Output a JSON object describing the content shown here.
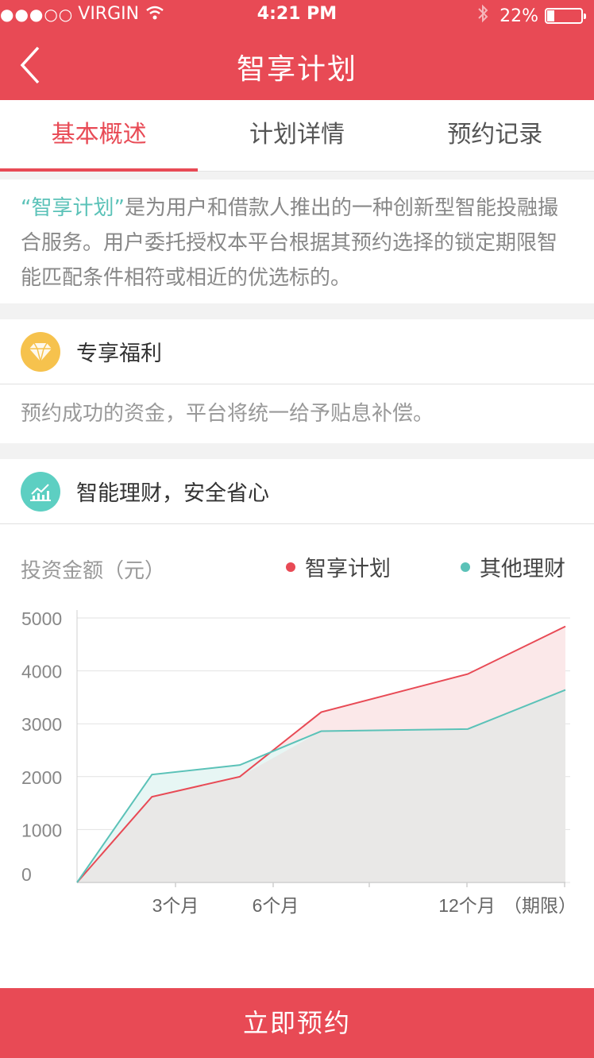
{
  "status_bar": {
    "signal": "●●●○○",
    "carrier": "VIRGIN",
    "time": "4:21 PM",
    "battery": "22%",
    "battery_level": 0.22
  },
  "nav": {
    "title": "智享计划"
  },
  "tabs": [
    {
      "label": "基本概述",
      "active": true
    },
    {
      "label": "计划详情",
      "active": false
    },
    {
      "label": "预约记录",
      "active": false
    }
  ],
  "intro": {
    "highlight": "“智享计划”",
    "text": "是为用户和借款人推出的一种创新型智能投融撮合服务。用户委托授权本平台根据其预约选择的锁定期限智能匹配条件相符或相近的优选标的。"
  },
  "benefit": {
    "icon": "diamond-icon",
    "title": "专享福利",
    "text": "预约成功的资金，平台将统一给予贴息补偿。"
  },
  "smart": {
    "icon": "bar-chart-icon",
    "title": "智能理财，安全省心"
  },
  "chart_data": {
    "type": "area",
    "ylabel": "投资金额（元）",
    "y_ticks": [
      "5000",
      "4000",
      "3000",
      "2000",
      "1000",
      "0"
    ],
    "x_ticks": [
      "3个月",
      "6个月",
      "12个月"
    ],
    "x_unit": "（期限）",
    "ylim": [
      0,
      5000
    ],
    "grid": true,
    "legend_position": "top-right",
    "x": [
      0,
      2.3,
      5,
      7.5,
      12,
      15
    ],
    "xlim": [
      0,
      15
    ],
    "series": [
      {
        "name": "智享计划",
        "color": "#e84a55",
        "fill": "#fbe8e9",
        "values": [
          0,
          1620,
          2000,
          3220,
          3940,
          4840
        ]
      },
      {
        "name": "其他理财",
        "color": "#5bc2b8",
        "fill": "#e7f6f4",
        "values": [
          0,
          2040,
          2220,
          2860,
          2900,
          3640
        ]
      }
    ]
  },
  "cta": {
    "label": "立即预约"
  }
}
